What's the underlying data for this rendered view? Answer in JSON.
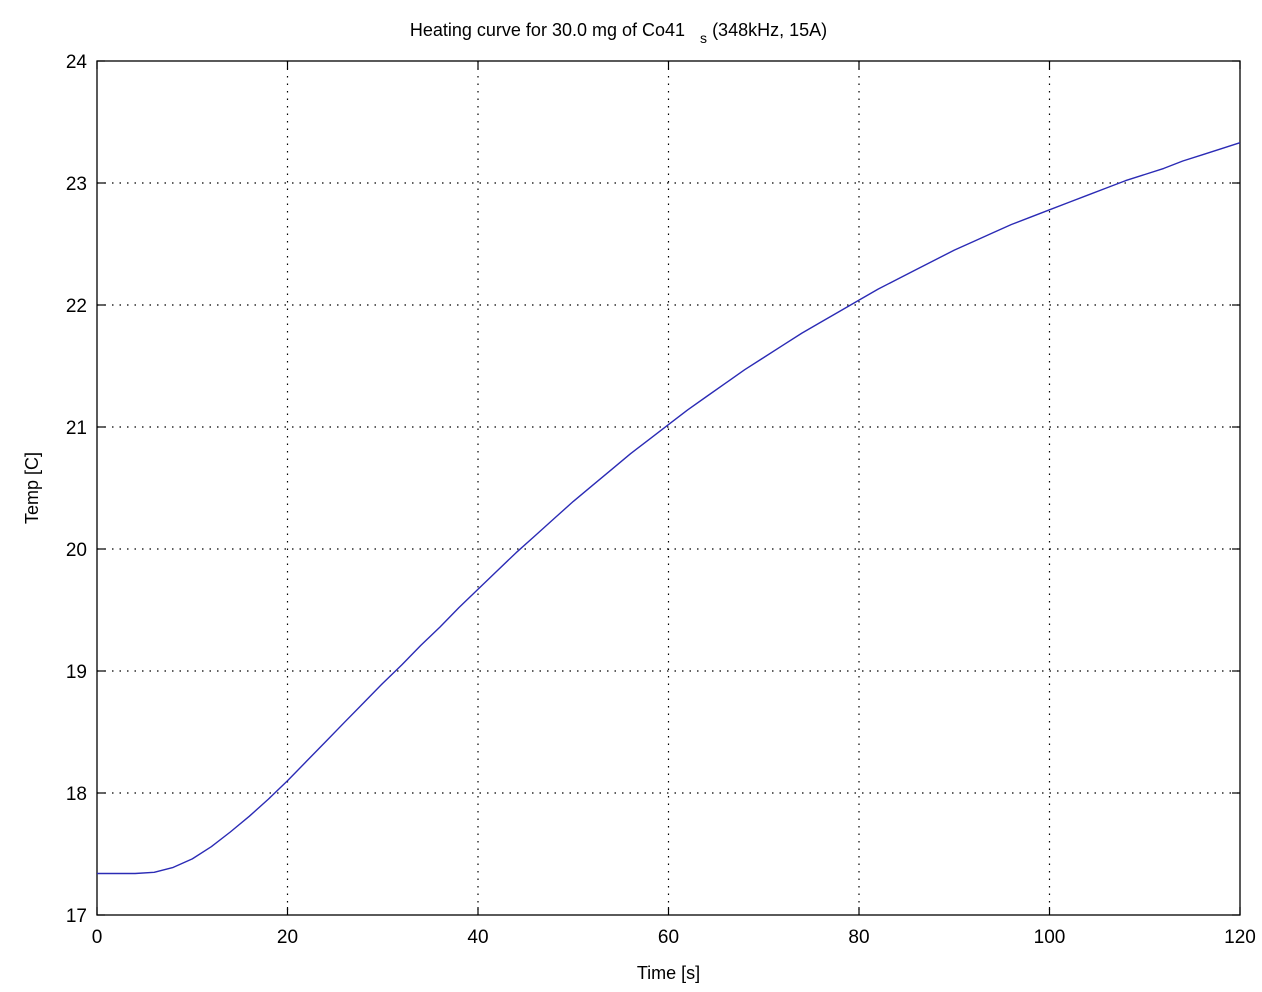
{
  "chart_data": {
    "type": "line",
    "title": "Heating curve for 30.0 mg of Co41",
    "title_subscript": "s",
    "title_suffix": "(348kHz, 15A)",
    "xlabel": "Time [s]",
    "ylabel": "Temp [C]",
    "xlim": [
      0,
      120
    ],
    "ylim": [
      17,
      24
    ],
    "xticks": [
      0,
      20,
      40,
      60,
      80,
      100,
      120
    ],
    "yticks": [
      17,
      18,
      19,
      20,
      21,
      22,
      23,
      24
    ],
    "xtick_labels": [
      "0",
      "20",
      "40",
      "60",
      "80",
      "100",
      "120"
    ],
    "ytick_labels": [
      "17",
      "18",
      "19",
      "20",
      "21",
      "22",
      "23",
      "24"
    ],
    "grid": true,
    "line_color": "#2b2bb5",
    "series": [
      {
        "x": [
          0,
          2,
          4,
          6,
          8,
          10,
          12,
          14,
          16,
          18,
          20,
          22,
          24,
          26,
          28,
          30,
          32,
          34,
          36,
          38,
          40,
          42,
          44,
          46,
          48,
          50,
          52,
          54,
          56,
          58,
          60,
          62,
          64,
          66,
          68,
          70,
          72,
          74,
          76,
          78,
          80,
          82,
          84,
          86,
          88,
          90,
          92,
          94,
          96,
          98,
          100,
          102,
          104,
          106,
          108,
          110,
          112,
          114,
          116,
          118,
          120
        ],
        "y": [
          17.34,
          17.34,
          17.34,
          17.35,
          17.39,
          17.46,
          17.56,
          17.68,
          17.81,
          17.95,
          18.1,
          18.26,
          18.42,
          18.58,
          18.74,
          18.9,
          19.05,
          19.21,
          19.36,
          19.52,
          19.67,
          19.82,
          19.97,
          20.11,
          20.25,
          20.39,
          20.52,
          20.65,
          20.78,
          20.9,
          21.02,
          21.14,
          21.25,
          21.36,
          21.47,
          21.57,
          21.67,
          21.77,
          21.86,
          21.95,
          22.04,
          22.13,
          22.21,
          22.29,
          22.37,
          22.45,
          22.52,
          22.59,
          22.66,
          22.72,
          22.78,
          22.84,
          22.9,
          22.96,
          23.02,
          23.07,
          23.12,
          23.18,
          23.23,
          23.28,
          23.33
        ]
      }
    ]
  }
}
